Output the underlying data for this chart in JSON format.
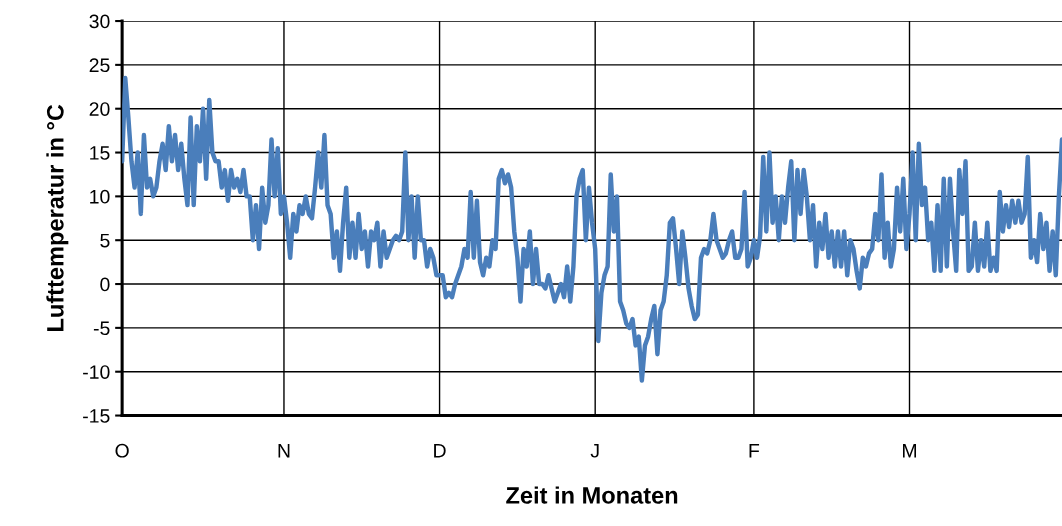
{
  "chart_data": {
    "type": "line",
    "xlabel": "Zeit in Monaten",
    "ylabel": "Lufttemperatur in °C",
    "ylim": [
      -15,
      30
    ],
    "yticks": [
      -15,
      -10,
      -5,
      0,
      5,
      10,
      15,
      20,
      25,
      30
    ],
    "grid": true,
    "legend": false,
    "marker": "none",
    "line_style": "solid",
    "categories": [
      "O",
      null,
      null,
      null,
      null,
      null,
      null,
      null,
      null,
      null,
      null,
      null,
      null,
      null,
      null,
      null,
      null,
      null,
      null,
      null,
      null,
      null,
      null,
      null,
      null,
      null,
      null,
      null,
      null,
      null,
      null,
      null,
      null,
      null,
      null,
      null,
      null,
      null,
      null,
      null,
      null,
      null,
      null,
      null,
      null,
      null,
      null,
      null,
      null,
      null,
      null,
      null,
      "N",
      null,
      null,
      null,
      null,
      null,
      null,
      null,
      null,
      null,
      null,
      null,
      null,
      null,
      null,
      null,
      null,
      null,
      null,
      null,
      null,
      null,
      null,
      null,
      null,
      null,
      null,
      null,
      null,
      null,
      null,
      null,
      null,
      null,
      null,
      null,
      null,
      null,
      null,
      null,
      null,
      null,
      null,
      null,
      null,
      null,
      null,
      null,
      null,
      null,
      "D",
      null,
      null,
      null,
      null,
      null,
      null,
      null,
      null,
      null,
      null,
      null,
      null,
      null,
      null,
      null,
      null,
      null,
      null,
      null,
      null,
      null,
      null,
      null,
      null,
      null,
      null,
      null,
      null,
      null,
      null,
      null,
      null,
      null,
      null,
      null,
      null,
      null,
      null,
      null,
      null,
      null,
      null,
      null,
      null,
      null,
      null,
      null,
      null,
      null,
      "J",
      null,
      null,
      null,
      null,
      null,
      null,
      null,
      null,
      null,
      null,
      null,
      null,
      null,
      null,
      null,
      null,
      null,
      null,
      null,
      null,
      null,
      null,
      null,
      null,
      null,
      null,
      null,
      null,
      null,
      null,
      null,
      null,
      null,
      null,
      null,
      null,
      null,
      null,
      null,
      null,
      null,
      null,
      null,
      null,
      null,
      null,
      null,
      null,
      null,
      null,
      "F",
      null,
      null,
      null,
      null,
      null,
      null,
      null,
      null,
      null,
      null,
      null,
      null,
      null,
      null,
      null,
      null,
      null,
      null,
      null,
      null,
      null,
      null,
      null,
      null,
      null,
      null,
      null,
      null,
      null,
      null,
      null,
      null,
      null,
      null,
      null,
      null,
      null,
      null,
      null,
      null,
      null,
      null,
      null,
      null,
      null,
      null,
      null,
      null,
      null,
      "M",
      null,
      null,
      null,
      null,
      null,
      null,
      null,
      null,
      null,
      null,
      null,
      null,
      null,
      null,
      null,
      null,
      null,
      null,
      null,
      null,
      null,
      null,
      null,
      null,
      null,
      null,
      null,
      null,
      null,
      null,
      null,
      null,
      null,
      null,
      null,
      null,
      null,
      null,
      null,
      null,
      null,
      null,
      null,
      null,
      null,
      null,
      null,
      null,
      null
    ],
    "series": [
      {
        "color": "#4a7ebb",
        "values": [
          14,
          23.5,
          19,
          14,
          11,
          15,
          8,
          17,
          11,
          12,
          10,
          11,
          14,
          16,
          13,
          18,
          14,
          17,
          13,
          16,
          12,
          9,
          19,
          9,
          18,
          14,
          20,
          12,
          21,
          15,
          14,
          14,
          11,
          13,
          9.5,
          13,
          11,
          12,
          10.5,
          13,
          10,
          10,
          5,
          9,
          4,
          11,
          7,
          9,
          16.5,
          10,
          15.5,
          8,
          10,
          7,
          3,
          8,
          6,
          9,
          8,
          10,
          8,
          7.5,
          11,
          15,
          11,
          17,
          9,
          8,
          3,
          6,
          1.5,
          7,
          11,
          3,
          7,
          3,
          8,
          4,
          6,
          2,
          6,
          5,
          7,
          2,
          6,
          3,
          4,
          5,
          5.5,
          5,
          6,
          15,
          5,
          10,
          3,
          10,
          5,
          5,
          2,
          4,
          3,
          1,
          1,
          1,
          -1.5,
          -1,
          -1.5,
          0,
          1,
          2,
          4,
          3,
          10.5,
          3,
          9.5,
          2.5,
          1,
          3,
          2,
          5,
          4,
          12,
          13,
          11.5,
          12.5,
          11,
          6,
          3,
          -2,
          4,
          2,
          6,
          0,
          4,
          0,
          0,
          -0.5,
          1,
          -0.5,
          -2,
          -1,
          0,
          -1.5,
          2,
          -2,
          2,
          10,
          12,
          13,
          5,
          11,
          7,
          4,
          -6.5,
          -1,
          1,
          2,
          12.5,
          6,
          10,
          -2,
          -3,
          -4.5,
          -5,
          -4,
          -7,
          -6,
          -11,
          -7,
          -6,
          -4,
          -2.5,
          -8,
          -3,
          -2,
          1,
          7,
          7.5,
          4,
          0,
          6,
          3,
          -0.5,
          -2.5,
          -4,
          -3.5,
          3,
          4,
          3.5,
          5,
          8,
          5,
          4,
          3,
          3.5,
          5,
          6,
          3,
          3,
          4,
          10.5,
          2,
          3,
          5,
          3,
          5.5,
          14.5,
          6,
          15,
          7,
          10,
          5,
          10,
          7,
          11,
          14,
          5,
          13,
          8,
          13,
          10,
          5,
          9,
          2,
          7,
          4,
          8,
          3,
          6,
          2,
          6,
          2,
          6,
          1,
          5,
          4,
          1.5,
          -0.5,
          3,
          2,
          3.5,
          4,
          8,
          5,
          12.5,
          3,
          7,
          2,
          4,
          11,
          6,
          12,
          4,
          8,
          15,
          5,
          16,
          9,
          11,
          5,
          7,
          1.5,
          9,
          1.5,
          12,
          2,
          12,
          6,
          1.5,
          13,
          8,
          14,
          1.5,
          2,
          7,
          1.5,
          5,
          2,
          7,
          1.5,
          3,
          1.5,
          10.5,
          6,
          9,
          6.5,
          9.5,
          7,
          9.5,
          7,
          8,
          14.5,
          3,
          5,
          2.5,
          8,
          4,
          7,
          1.5,
          6,
          1,
          10,
          16.5
        ]
      }
    ]
  }
}
